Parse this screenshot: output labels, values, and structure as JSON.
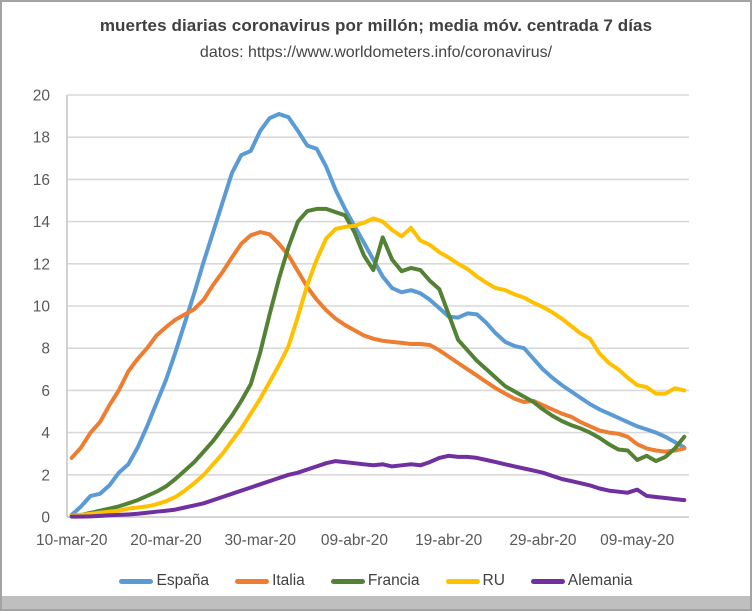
{
  "header": {
    "title": "muertes diarias coronavirus por millón; media móv. centrada 7 días",
    "subtitle": "datos: https://www.worldometers.info/coronavirus/"
  },
  "styles": {
    "title_color": "#404040",
    "axis_text_color": "#595959",
    "grid_color": "#d9d9d9",
    "axis_line_color": "#c6c6c6",
    "frame_border_color": "#a3a3a3",
    "bottom_strip_color": "#bfbfbf",
    "background": "#ffffff"
  },
  "chart_data": {
    "type": "line",
    "title": "muertes diarias coronavirus por millón; media móv. centrada 7 días",
    "subtitle": "datos: https://www.worldometers.info/coronavirus/",
    "xlabel": "",
    "ylabel": "",
    "ylim": [
      0,
      20
    ],
    "y_tick_step": 2,
    "grid": "horizontal",
    "legend_position": "bottom",
    "x_start_date": "10-mar-20",
    "x_end_date": "14-may-20",
    "x_is_daily": true,
    "x_tick_labels": [
      "10-mar-20",
      "20-mar-20",
      "30-mar-20",
      "09-abr-20",
      "19-abr-20",
      "29-abr-20",
      "09-may-20"
    ],
    "x_tick_day_indices": [
      0,
      10,
      20,
      30,
      40,
      50,
      60
    ],
    "series": [
      {
        "name": "España",
        "color": "#5B9BD5",
        "values": [
          0.1,
          0.5,
          1.0,
          1.1,
          1.5,
          2.1,
          2.5,
          3.3,
          4.3,
          5.4,
          6.5,
          7.8,
          9.2,
          10.6,
          12.1,
          13.5,
          14.9,
          16.3,
          17.15,
          17.35,
          18.3,
          18.9,
          19.1,
          18.95,
          18.3,
          17.6,
          17.45,
          16.6,
          15.5,
          14.6,
          13.8,
          13.0,
          12.2,
          11.4,
          10.85,
          10.65,
          10.75,
          10.6,
          10.3,
          9.9,
          9.5,
          9.45,
          9.65,
          9.6,
          9.2,
          8.7,
          8.3,
          8.1,
          8.0,
          7.5,
          7.0,
          6.6,
          6.25,
          5.95,
          5.65,
          5.35,
          5.1,
          4.9,
          4.7,
          4.5,
          4.3,
          4.15,
          4.0,
          3.8,
          3.55,
          3.3
        ]
      },
      {
        "name": "Italia",
        "color": "#ED7D31",
        "values": [
          2.8,
          3.3,
          4.0,
          4.5,
          5.3,
          6.0,
          6.9,
          7.5,
          8.0,
          8.6,
          9.0,
          9.35,
          9.6,
          9.85,
          10.3,
          11.0,
          11.6,
          12.3,
          12.95,
          13.35,
          13.5,
          13.4,
          12.95,
          12.4,
          11.65,
          10.9,
          10.3,
          9.8,
          9.4,
          9.1,
          8.85,
          8.6,
          8.45,
          8.35,
          8.3,
          8.25,
          8.2,
          8.2,
          8.15,
          7.9,
          7.6,
          7.3,
          7.0,
          6.7,
          6.4,
          6.1,
          5.85,
          5.6,
          5.45,
          5.5,
          5.3,
          5.1,
          4.9,
          4.75,
          4.5,
          4.3,
          4.1,
          4.0,
          3.95,
          3.8,
          3.45,
          3.25,
          3.15,
          3.1,
          3.15,
          3.25
        ]
      },
      {
        "name": "Francia",
        "color": "#548235",
        "values": [
          0.05,
          0.1,
          0.2,
          0.3,
          0.4,
          0.5,
          0.65,
          0.8,
          1.0,
          1.2,
          1.45,
          1.8,
          2.2,
          2.6,
          3.1,
          3.6,
          4.2,
          4.8,
          5.5,
          6.3,
          7.8,
          9.6,
          11.3,
          12.8,
          14.0,
          14.5,
          14.6,
          14.6,
          14.45,
          14.3,
          13.5,
          12.4,
          11.7,
          13.25,
          12.2,
          11.65,
          11.8,
          11.7,
          11.2,
          10.8,
          9.6,
          8.4,
          7.9,
          7.4,
          7.0,
          6.6,
          6.2,
          5.95,
          5.7,
          5.45,
          5.1,
          4.8,
          4.55,
          4.35,
          4.2,
          4.0,
          3.75,
          3.45,
          3.2,
          3.15,
          2.7,
          2.9,
          2.65,
          2.85,
          3.25,
          3.8
        ]
      },
      {
        "name": "RU",
        "color": "#FFC000",
        "values": [
          0.05,
          0.1,
          0.15,
          0.2,
          0.25,
          0.3,
          0.4,
          0.45,
          0.5,
          0.6,
          0.75,
          0.95,
          1.25,
          1.6,
          2.0,
          2.5,
          3.0,
          3.6,
          4.2,
          4.9,
          5.6,
          6.4,
          7.2,
          8.1,
          9.5,
          11.0,
          12.2,
          13.2,
          13.65,
          13.75,
          13.8,
          13.95,
          14.15,
          14.0,
          13.6,
          13.3,
          13.7,
          13.1,
          12.9,
          12.55,
          12.3,
          12.0,
          11.75,
          11.4,
          11.1,
          10.85,
          10.75,
          10.55,
          10.4,
          10.15,
          9.95,
          9.7,
          9.4,
          9.05,
          8.7,
          8.45,
          7.75,
          7.3,
          7.0,
          6.6,
          6.25,
          6.15,
          5.85,
          5.85,
          6.1,
          6.0
        ]
      },
      {
        "name": "Alemania",
        "color": "#7030A0",
        "values": [
          0.02,
          0.02,
          0.03,
          0.05,
          0.08,
          0.1,
          0.12,
          0.15,
          0.2,
          0.25,
          0.3,
          0.35,
          0.45,
          0.55,
          0.65,
          0.8,
          0.95,
          1.1,
          1.25,
          1.4,
          1.55,
          1.7,
          1.85,
          2.0,
          2.1,
          2.25,
          2.4,
          2.55,
          2.65,
          2.6,
          2.55,
          2.5,
          2.45,
          2.5,
          2.4,
          2.45,
          2.5,
          2.45,
          2.6,
          2.8,
          2.9,
          2.85,
          2.85,
          2.8,
          2.7,
          2.6,
          2.5,
          2.4,
          2.3,
          2.2,
          2.1,
          1.95,
          1.8,
          1.7,
          1.6,
          1.5,
          1.35,
          1.25,
          1.2,
          1.15,
          1.3,
          1.0,
          0.95,
          0.9,
          0.85,
          0.8
        ]
      }
    ]
  }
}
